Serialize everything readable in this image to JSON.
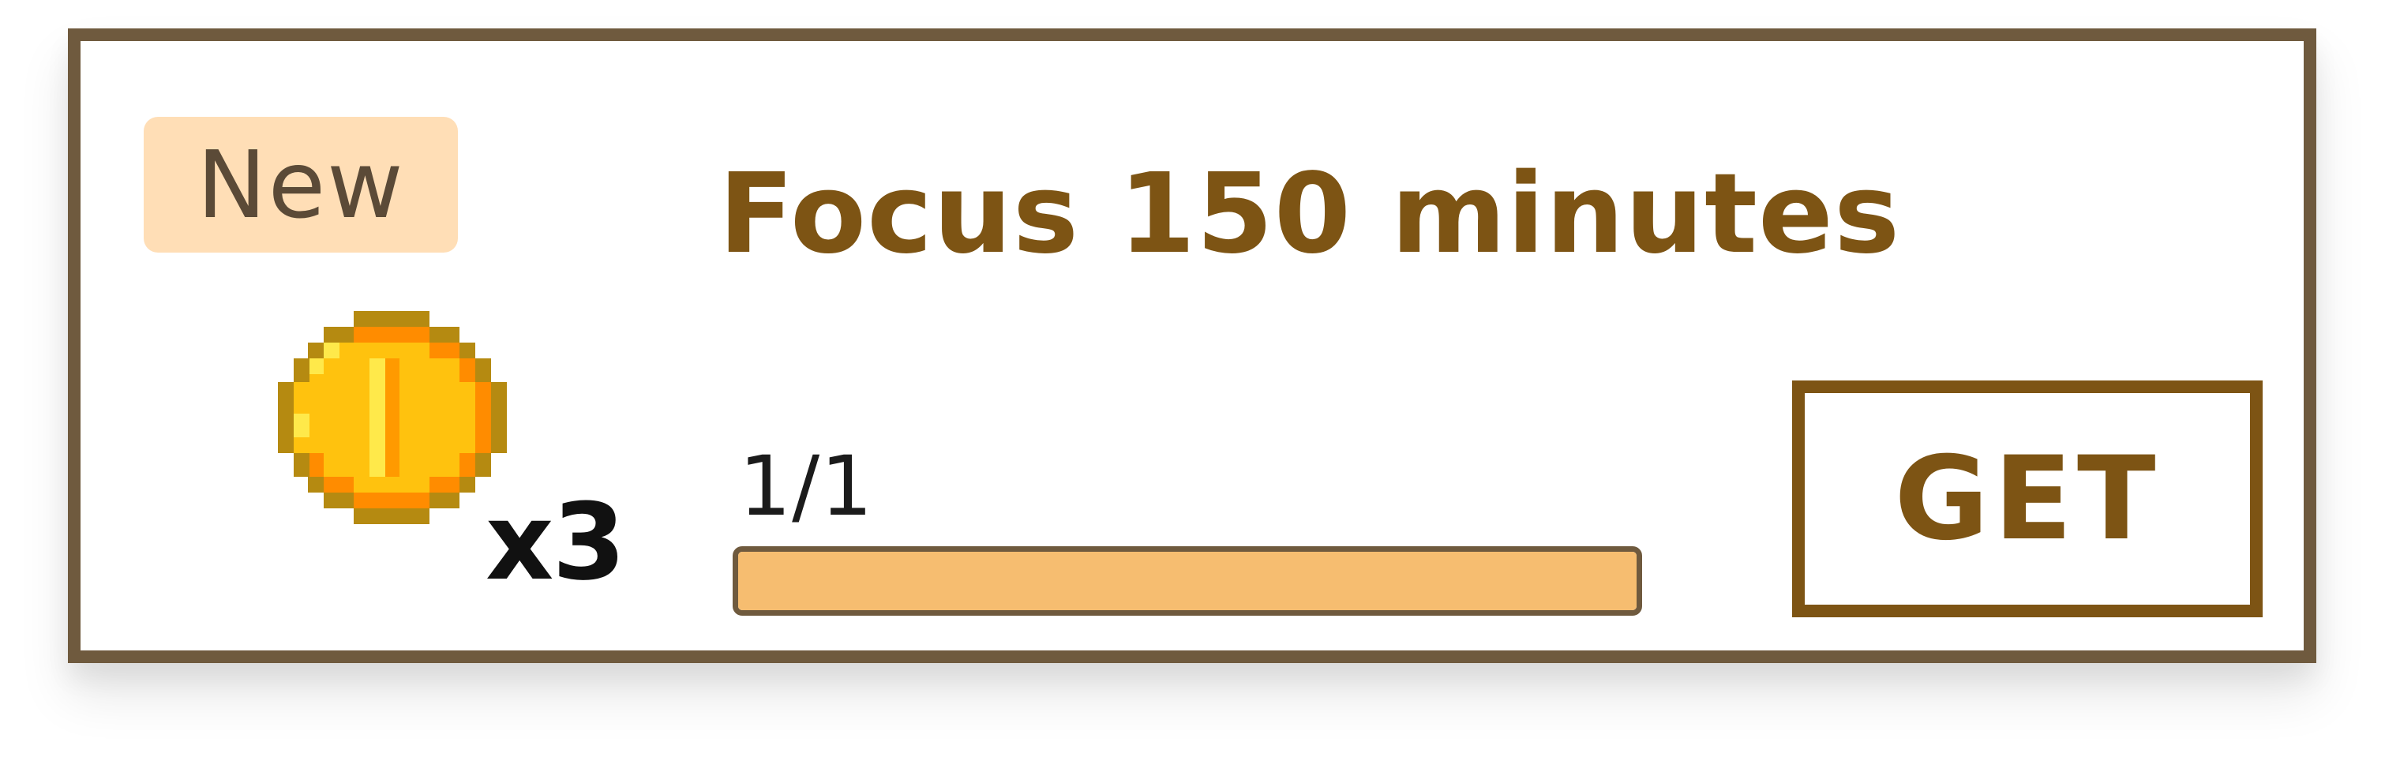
{
  "task_card": {
    "badge_label": "New",
    "title": "Focus 150 minutes",
    "reward": {
      "icon": "gold-coin-icon",
      "count_label": "x3"
    },
    "progress": {
      "label": "1/1",
      "fraction": 1.0
    },
    "claim_button_label": "GET"
  },
  "colors": {
    "card_border": "#6f5a3e",
    "badge_bg": "#ffdeb6",
    "title_text": "#7d5414",
    "progress_fill": "#f6bd70",
    "button_border": "#7d5414"
  }
}
